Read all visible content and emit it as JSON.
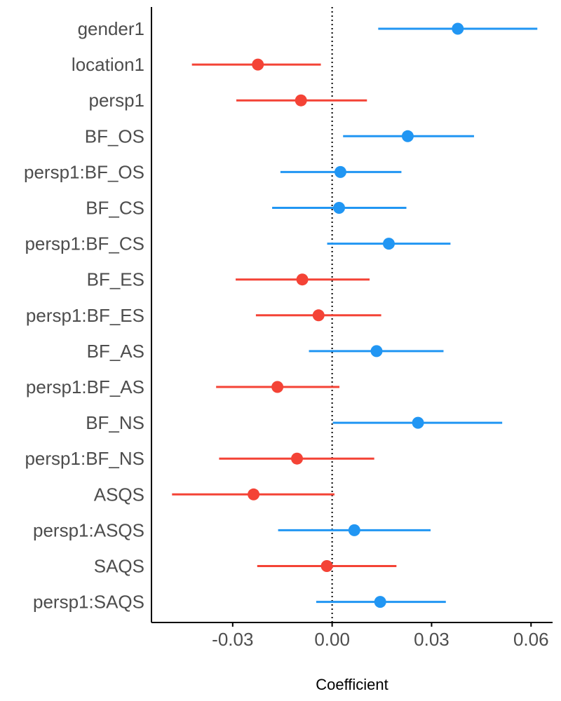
{
  "chart_data": {
    "type": "coefficient-plot",
    "xlabel": "Coefficient",
    "xlim": [
      -0.0545,
      0.0665
    ],
    "x_ticks": [
      -0.03,
      0.0,
      0.03,
      0.06
    ],
    "x_tick_labels": [
      "-0.03",
      "0.00",
      "0.03",
      "0.06"
    ],
    "reference_line": 0,
    "grid": false,
    "colors": {
      "positive": "#2196f3",
      "negative": "#f44336",
      "reference": "#000000"
    },
    "terms": [
      {
        "label": "gender1",
        "estimate": 0.0379,
        "low": 0.0139,
        "high": 0.0619
      },
      {
        "label": "location1",
        "estimate": -0.0224,
        "low": -0.0423,
        "high": -0.0034
      },
      {
        "label": "persp1",
        "estimate": -0.0094,
        "low": -0.0289,
        "high": 0.0105
      },
      {
        "label": "BF_OS",
        "estimate": 0.0228,
        "low": 0.0033,
        "high": 0.0428
      },
      {
        "label": "persp1:BF_OS",
        "estimate": 0.0025,
        "low": -0.0156,
        "high": 0.0209
      },
      {
        "label": "BF_CS",
        "estimate": 0.0021,
        "low": -0.0181,
        "high": 0.0224
      },
      {
        "label": "persp1:BF_CS",
        "estimate": 0.0171,
        "low": -0.0015,
        "high": 0.0357
      },
      {
        "label": "BF_ES",
        "estimate": -0.009,
        "low": -0.0291,
        "high": 0.0113
      },
      {
        "label": "persp1:BF_ES",
        "estimate": -0.0041,
        "low": -0.023,
        "high": 0.0148
      },
      {
        "label": "BF_AS",
        "estimate": 0.0134,
        "low": -0.007,
        "high": 0.0336
      },
      {
        "label": "persp1:BF_AS",
        "estimate": -0.0165,
        "low": -0.035,
        "high": 0.0022
      },
      {
        "label": "BF_NS",
        "estimate": 0.0259,
        "low": 0.0002,
        "high": 0.0513
      },
      {
        "label": "persp1:BF_NS",
        "estimate": -0.0106,
        "low": -0.0341,
        "high": 0.0127
      },
      {
        "label": "ASQS",
        "estimate": -0.0237,
        "low": -0.0483,
        "high": 0.0007
      },
      {
        "label": "persp1:ASQS",
        "estimate": 0.0067,
        "low": -0.0163,
        "high": 0.0297
      },
      {
        "label": "SAQS",
        "estimate": -0.0016,
        "low": -0.0226,
        "high": 0.0194
      },
      {
        "label": "persp1:SAQS",
        "estimate": 0.0145,
        "low": -0.0048,
        "high": 0.0343
      }
    ]
  }
}
